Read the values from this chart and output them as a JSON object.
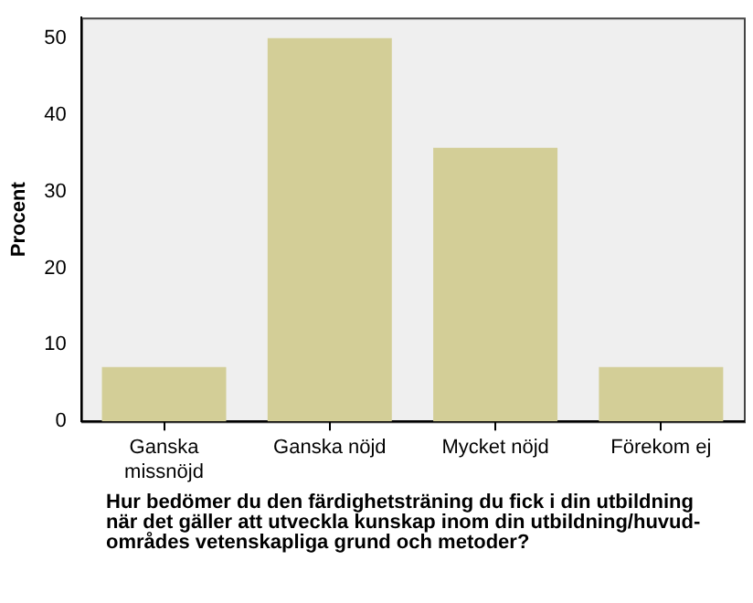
{
  "chart_data": {
    "type": "bar",
    "xlabel": "Hur bedömer du den färdighetsträning du fick i din utbildning när det gäller att utveckla kunskap inom din utbildning/huvud-områdes vetenskapliga grund och metoder?",
    "ylabel": "Procent",
    "categories": [
      "Ganska missnöjd",
      "Ganska nöjd",
      "Mycket nöjd",
      "Förekom ej"
    ],
    "values": [
      7.1,
      50,
      35.7,
      7.1
    ],
    "color": "#d3ce97",
    "ylim": [
      0,
      52.7
    ],
    "yticks": [
      0,
      10,
      20,
      30,
      40,
      50
    ],
    "grid": false,
    "legend": false
  }
}
